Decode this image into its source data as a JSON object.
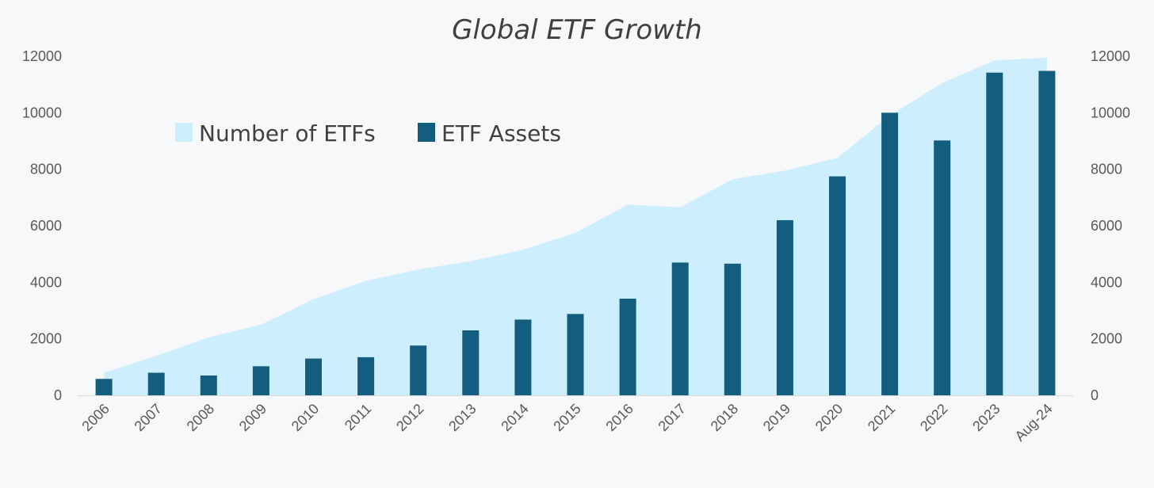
{
  "chart_data": {
    "type": "bar",
    "title": "Global ETF Growth",
    "categories": [
      "2006",
      "2007",
      "2008",
      "2009",
      "2010",
      "2011",
      "2012",
      "2013",
      "2014",
      "2015",
      "2016",
      "2017",
      "2018",
      "2019",
      "2020",
      "2021",
      "2022",
      "2023",
      "Aug-24"
    ],
    "series": [
      {
        "name": "Number of ETFs",
        "type": "area",
        "axis": "left",
        "color": "#cdeefc",
        "values": [
          800,
          1400,
          2050,
          2500,
          3400,
          4050,
          4450,
          4750,
          5150,
          5750,
          6750,
          6650,
          7650,
          7950,
          8400,
          9900,
          11050,
          11850,
          11950
        ]
      },
      {
        "name": "ETF Assets",
        "type": "bar",
        "axis": "right",
        "color": "#135e7f",
        "values": [
          580,
          800,
          700,
          1030,
          1300,
          1350,
          1760,
          2300,
          2680,
          2880,
          3420,
          4700,
          4660,
          6200,
          7750,
          10000,
          9020,
          11420,
          11480
        ]
      }
    ],
    "y_left": {
      "min": 0,
      "max": 12000,
      "ticks": [
        "0",
        "2000",
        "4000",
        "6000",
        "8000",
        "10000",
        "12000"
      ]
    },
    "y_right": {
      "min": 0,
      "max": 12000,
      "ticks": [
        "0",
        "2000",
        "4000",
        "6000",
        "8000",
        "10000",
        "12000"
      ]
    },
    "legend": {
      "position": "top-left",
      "items": [
        {
          "label": "Number of ETFs",
          "color": "#cdeefc"
        },
        {
          "label": "ETF Assets",
          "color": "#135e7f"
        }
      ]
    },
    "grid": false
  }
}
